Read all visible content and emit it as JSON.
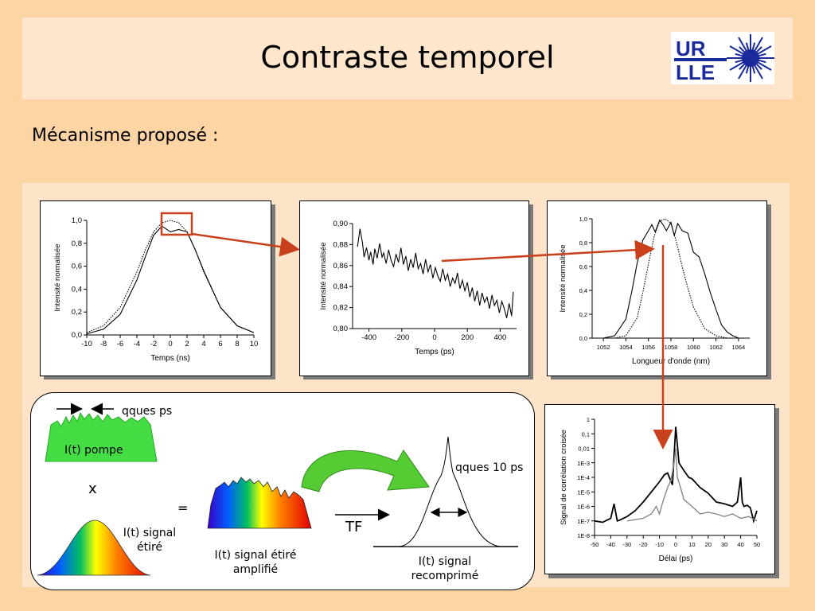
{
  "slide": {
    "title": "Contraste temporel",
    "subtitle": "Mécanisme proposé :",
    "logo": {
      "line1": "UR",
      "line2": "LLE"
    }
  },
  "mechanism": {
    "pump_label": "I(t) pompe",
    "pump_annotation": "qques ps",
    "times_symbol": "x",
    "equals_symbol": "=",
    "signal_label_line1": "I(t) signal",
    "signal_label_line2": "étiré",
    "amplified_label_line1": "I(t) signal étiré",
    "amplified_label_line2": "amplifié",
    "tf_label": "TF",
    "recompressed_annotation": "qques 10 ps",
    "recompressed_label_line1": "I(t) signal",
    "recompressed_label_line2": "recomprimé"
  },
  "colors": {
    "highlight_box": "#c8401c",
    "arrow": "#c8401c",
    "green_pump": "#44dd44",
    "green_arrow": "#55cc33"
  },
  "chart_data": [
    {
      "id": "fig1",
      "type": "line",
      "xlabel": "Temps (ns)",
      "ylabel": "Intensité normalisée",
      "xlim": [
        -10,
        10
      ],
      "ylim": [
        0,
        1
      ],
      "xticks": [
        "-10",
        "-8",
        "-6",
        "-4",
        "-2",
        "0",
        "2",
        "4",
        "6",
        "8",
        "10"
      ],
      "yticks": [
        "0,0",
        "0,2",
        "0,4",
        "0,6",
        "0,8",
        "1,0"
      ],
      "series": [
        {
          "style": "solid",
          "x": [
            -10,
            -8,
            -6,
            -4,
            -3,
            -2,
            -1,
            0,
            1,
            2,
            3,
            4,
            6,
            8,
            10
          ],
          "y": [
            0.01,
            0.05,
            0.18,
            0.48,
            0.68,
            0.87,
            0.95,
            0.9,
            0.92,
            0.9,
            0.74,
            0.56,
            0.24,
            0.08,
            0.02
          ]
        },
        {
          "style": "dotted",
          "x": [
            -10,
            -8,
            -6,
            -4,
            -3,
            -2,
            -1,
            0,
            1,
            2,
            3,
            4,
            6,
            8,
            10
          ],
          "y": [
            0.02,
            0.08,
            0.24,
            0.55,
            0.74,
            0.9,
            0.98,
            1.0,
            0.98,
            0.9,
            0.74,
            0.55,
            0.24,
            0.08,
            0.02
          ]
        }
      ]
    },
    {
      "id": "fig2",
      "type": "line",
      "xlabel": "Temps (ps)",
      "ylabel": "Intensité normalisée",
      "xlim": [
        -500,
        500
      ],
      "ylim": [
        0.8,
        0.9
      ],
      "xticks": [
        "-400",
        "-200",
        "0",
        "200",
        "400"
      ],
      "yticks": [
        "0,80",
        "0,82",
        "0,84",
        "0,86",
        "0,88",
        "0,90"
      ],
      "series": [
        {
          "style": "solid",
          "x": [
            -470,
            -455,
            -440,
            -430,
            -415,
            -400,
            -390,
            -375,
            -365,
            -350,
            -335,
            -320,
            -310,
            -295,
            -280,
            -265,
            -250,
            -235,
            -220,
            -205,
            -190,
            -175,
            -160,
            -145,
            -130,
            -115,
            -100,
            -85,
            -70,
            -55,
            -40,
            -25,
            -10,
            5,
            20,
            35,
            50,
            65,
            80,
            95,
            110,
            125,
            140,
            155,
            170,
            185,
            200,
            215,
            230,
            245,
            260,
            275,
            290,
            305,
            320,
            335,
            350,
            365,
            380,
            395,
            410,
            425,
            440,
            455,
            470,
            480
          ],
          "y": [
            0.878,
            0.895,
            0.882,
            0.868,
            0.877,
            0.865,
            0.873,
            0.861,
            0.876,
            0.867,
            0.881,
            0.868,
            0.872,
            0.862,
            0.875,
            0.865,
            0.859,
            0.871,
            0.863,
            0.877,
            0.861,
            0.869,
            0.855,
            0.866,
            0.858,
            0.872,
            0.857,
            0.862,
            0.852,
            0.866,
            0.854,
            0.861,
            0.848,
            0.858,
            0.85,
            0.845,
            0.857,
            0.846,
            0.852,
            0.84,
            0.848,
            0.843,
            0.853,
            0.838,
            0.846,
            0.836,
            0.844,
            0.83,
            0.839,
            0.826,
            0.836,
            0.822,
            0.834,
            0.825,
            0.83,
            0.819,
            0.832,
            0.822,
            0.827,
            0.815,
            0.826,
            0.819,
            0.81,
            0.824,
            0.812,
            0.835
          ]
        }
      ]
    },
    {
      "id": "fig3",
      "type": "line",
      "xlabel": "Longueur d'onde (nm)",
      "ylabel": "Intensité normalisée",
      "xlim": [
        1051,
        1065
      ],
      "ylim": [
        0,
        1
      ],
      "xticks": [
        "1052",
        "1054",
        "1056",
        "1058",
        "1060",
        "1062",
        "1064"
      ],
      "yticks": [
        "0,0",
        "0,2",
        "0,4",
        "0,6",
        "0,8",
        "1,0"
      ],
      "series": [
        {
          "style": "solid",
          "x": [
            1052,
            1053,
            1054,
            1054.5,
            1055,
            1055.5,
            1056,
            1056.3,
            1056.6,
            1057,
            1057.3,
            1057.6,
            1058,
            1058.3,
            1058.6,
            1059,
            1059.5,
            1060,
            1060.5,
            1061,
            1061.5,
            1062,
            1062.5,
            1063,
            1063.5,
            1064
          ],
          "y": [
            0.0,
            0.02,
            0.16,
            0.38,
            0.63,
            0.82,
            0.9,
            0.95,
            0.89,
            0.99,
            0.95,
            0.9,
            0.97,
            0.86,
            0.96,
            0.9,
            0.88,
            0.72,
            0.68,
            0.54,
            0.38,
            0.24,
            0.11,
            0.05,
            0.02,
            0.0
          ]
        },
        {
          "style": "dotted",
          "x": [
            1053,
            1054,
            1055,
            1055.5,
            1056,
            1056.5,
            1057,
            1057.5,
            1058,
            1058.5,
            1059,
            1059.5,
            1060,
            1061,
            1062,
            1063
          ],
          "y": [
            0.0,
            0.02,
            0.17,
            0.38,
            0.62,
            0.85,
            0.98,
            1.0,
            0.96,
            0.8,
            0.6,
            0.42,
            0.26,
            0.08,
            0.02,
            0.0
          ]
        }
      ]
    },
    {
      "id": "fig4",
      "type": "line",
      "xlabel": "Délai (ps)",
      "ylabel": "Signal de corrélation croisée",
      "xlim": [
        -50,
        50
      ],
      "ylim": [
        1e-08,
        1
      ],
      "yscale": "log",
      "xticks": [
        "-50",
        "-40",
        "-30",
        "-20",
        "-10",
        "0",
        "10",
        "20",
        "30",
        "40",
        "50"
      ],
      "yticks": [
        "1E-8",
        "1E-7",
        "1E-6",
        "1E-5",
        "1E-4",
        "1E-3",
        "0,01",
        "0,1",
        "1"
      ],
      "series": [
        {
          "style": "solid-black",
          "x": [
            -50,
            -45,
            -40,
            -38,
            -36,
            -34,
            -30,
            -25,
            -20,
            -15,
            -10,
            -7,
            -5,
            -2,
            0,
            2,
            5,
            8,
            10,
            15,
            20,
            25,
            30,
            35,
            38,
            40,
            41,
            42,
            44,
            46,
            48,
            50
          ],
          "y": [
            1e-07,
            8e-08,
            1.5e-07,
            1.5e-06,
            1e-07,
            1.2e-07,
            2e-07,
            5e-07,
            2e-06,
            1e-05,
            5e-05,
            0.00015,
            0.0002,
            3e-05,
            0.3,
            0.001,
            0.0003,
            0.0001,
            8e-05,
            2e-05,
            8e-06,
            2e-06,
            1.5e-06,
            1e-06,
            2e-06,
            0.0001,
            2e-06,
            1e-06,
            1.2e-06,
            8e-07,
            1e-07,
            5e-07
          ]
        },
        {
          "style": "solid-gray",
          "x": [
            -30,
            -20,
            -15,
            -12,
            -10,
            -8,
            -5,
            -3,
            -1,
            0,
            1,
            3,
            5,
            10,
            15,
            20,
            25,
            30,
            35,
            40,
            45,
            50
          ],
          "y": [
            1e-07,
            1.5e-07,
            3e-07,
            1e-06,
            3e-07,
            2e-06,
            2e-05,
            6e-05,
            0.001,
            0.01,
            0.0001,
            2e-05,
            3e-06,
            1e-06,
            3e-07,
            4e-07,
            3e-07,
            2e-07,
            3e-07,
            1.5e-07,
            2e-07,
            1e-07
          ]
        }
      ]
    }
  ]
}
